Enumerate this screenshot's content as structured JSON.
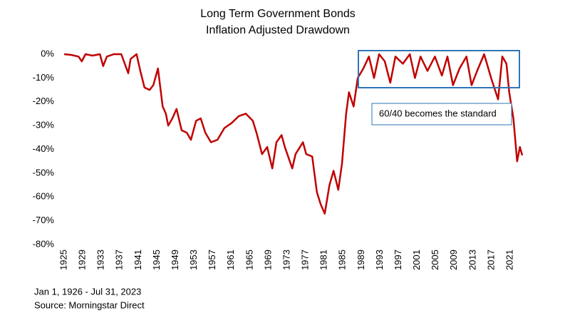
{
  "chart_data": {
    "type": "line",
    "title": [
      "Long Term Government Bonds",
      "Inflation Adjusted Drawdown"
    ],
    "annotation": "60/40 becomes the standard",
    "footnotes": [
      "Jan 1, 1926 - Jul 31, 2023",
      "Source: Morningstar Direct"
    ],
    "x": [
      1925.0,
      1926.5,
      1928.1,
      1928.8,
      1929.6,
      1931.1,
      1932.7,
      1933.4,
      1934.2,
      1935.7,
      1937.3,
      1938.8,
      1939.3,
      1940.6,
      1941.4,
      1942.3,
      1943.4,
      1944.2,
      1945.2,
      1946.2,
      1946.9,
      1947.4,
      1948.3,
      1949.2,
      1950.3,
      1951.4,
      1952.3,
      1953.4,
      1954.4,
      1955.4,
      1956.6,
      1958.0,
      1959.5,
      1961.0,
      1962.6,
      1964.1,
      1965.6,
      1966.4,
      1967.6,
      1968.7,
      1969.8,
      1970.7,
      1971.8,
      1972.5,
      1974.1,
      1974.8,
      1976.4,
      1977.1,
      1978.4,
      1979.4,
      1980.2,
      1981.1,
      1982.1,
      1983.0,
      1984.0,
      1984.8,
      1985.7,
      1986.3,
      1987.3,
      1988.2,
      1989.4,
      1990.6,
      1991.7,
      1992.8,
      1994.0,
      1995.2,
      1996.3,
      1997.9,
      1999.4,
      2000.5,
      2001.7,
      2003.2,
      2004.8,
      2006.3,
      2007.5,
      2008.7,
      2010.1,
      2011.6,
      2012.7,
      2013.9,
      2015.4,
      2016.9,
      2018.4,
      2019.3,
      2020.2,
      2020.8,
      2021.7,
      2022.5,
      2023.1,
      2023.6
    ],
    "series": [
      {
        "name": "Drawdown",
        "color": "#c00000",
        "values": [
          0,
          -0.3,
          -1,
          -3,
          0,
          -0.6,
          0,
          -5,
          -1,
          0,
          0,
          -8,
          -2,
          0,
          -7,
          -14,
          -15,
          -13,
          -6,
          -22,
          -25,
          -30,
          -27,
          -23,
          -32,
          -33,
          -36,
          -28,
          -27,
          -33,
          -37,
          -36,
          -31,
          -29,
          -26,
          -25,
          -28,
          -33,
          -42,
          -39,
          -48,
          -37,
          -34,
          -39,
          -48,
          -42,
          -37,
          -42,
          -43,
          -58,
          -63,
          -67,
          -55,
          -49,
          -57,
          -46,
          -25,
          -16,
          -22,
          -10,
          -6,
          -1,
          -10,
          0,
          -3,
          -12,
          -1,
          -4,
          0,
          -10,
          -1,
          -7,
          -1,
          -9,
          -1,
          -13,
          -6,
          -1,
          -13,
          -7,
          0,
          -10,
          -19,
          -1,
          -4,
          -16,
          -27,
          -45,
          -39,
          -42.5
        ]
      }
    ],
    "xlim": [
      1925,
      2023.6
    ],
    "xticks": [
      1925,
      1929,
      1933,
      1937,
      1941,
      1945,
      1949,
      1953,
      1957,
      1961,
      1965,
      1969,
      1973,
      1977,
      1981,
      1985,
      1989,
      1993,
      1997,
      2001,
      2005,
      2009,
      2013,
      2017,
      2021
    ],
    "ylim": [
      -80,
      0
    ],
    "yticks": [
      {
        "value": 0,
        "label": "0%"
      },
      {
        "value": -10,
        "label": "-10%"
      },
      {
        "value": -20,
        "label": "-20%"
      },
      {
        "value": -30,
        "label": "-30%"
      },
      {
        "value": -40,
        "label": "-40%"
      },
      {
        "value": -50,
        "label": "-50%"
      },
      {
        "value": -60,
        "label": "-60%"
      },
      {
        "value": -70,
        "label": "-70%"
      },
      {
        "value": -80,
        "label": "-80%"
      }
    ]
  }
}
